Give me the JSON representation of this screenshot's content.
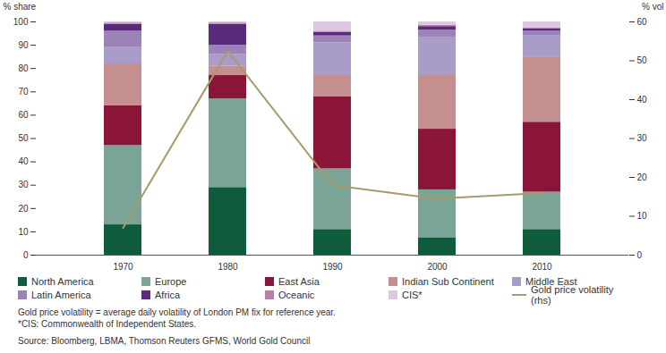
{
  "chart_data": {
    "type": "bar",
    "stacked": true,
    "grid": false,
    "legend": "bottom",
    "y_label": "% share",
    "y2_label": "% vol",
    "categories": [
      1970,
      1980,
      1990,
      2000,
      2010
    ],
    "ylim": [
      0,
      100
    ],
    "yticks": [
      0,
      10,
      20,
      30,
      40,
      50,
      60,
      70,
      80,
      90,
      100
    ],
    "y2lim": [
      0,
      60
    ],
    "y2ticks": [
      0,
      10,
      20,
      30,
      40,
      50,
      60
    ],
    "series": [
      {
        "name": "North America",
        "color": "#0f5c3c",
        "values": [
          13,
          29,
          11,
          7.5,
          11
        ]
      },
      {
        "name": "Europe",
        "color": "#7aa596",
        "values": [
          34,
          38,
          26,
          20.5,
          16
        ]
      },
      {
        "name": "East Asia",
        "color": "#8a1538",
        "values": [
          17,
          10,
          31,
          26,
          30
        ]
      },
      {
        "name": "Indian Sub Continent",
        "color": "#c48f8f",
        "values": [
          18,
          4,
          9,
          23,
          28
        ]
      },
      {
        "name": "Middle East",
        "color": "#a99cc9",
        "values": [
          7,
          5,
          14,
          16.5,
          9
        ]
      },
      {
        "name": "Latin America",
        "color": "#9b83b8",
        "values": [
          7,
          4,
          3,
          3,
          2
        ]
      },
      {
        "name": "Africa",
        "color": "#5a2a7e",
        "values": [
          3,
          9,
          1.5,
          1.5,
          1
        ]
      },
      {
        "name": "Oceanic",
        "color": "#b77fa9",
        "values": [
          0.5,
          0.5,
          0.5,
          0.5,
          0.5
        ]
      },
      {
        "name": "CIS*",
        "color": "#dcc8e0",
        "values": [
          0.5,
          0.5,
          4,
          1.5,
          2.5
        ]
      },
      {
        "name": "Gold price volatility (rhs)",
        "type": "line",
        "axis": "y2",
        "color": "#a89a6b",
        "values": [
          7,
          52.5,
          18,
          14.5,
          16
        ]
      }
    ],
    "notes": [
      "Gold price volatility = average daily volatility of London PM fix for reference year.",
      "*CIS: Commonwealth of Independent States."
    ],
    "source": "Source: Bloomberg, LBMA, Thomson Reuters GFMS, World Gold Council"
  }
}
